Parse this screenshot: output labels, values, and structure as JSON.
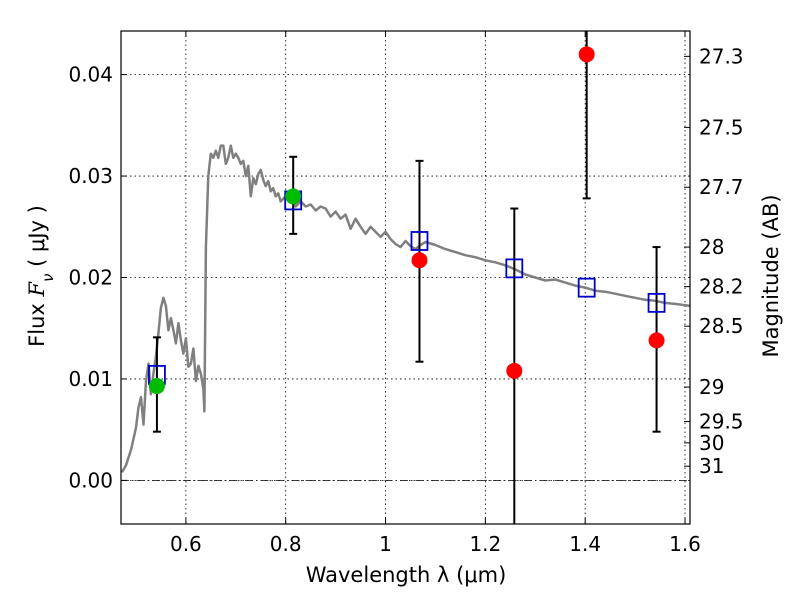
{
  "chart_data": {
    "type": "scatter",
    "title": "",
    "xlabel": "Wavelength  λ (μm)",
    "ylabel_parts": {
      "prefix": "Flux  ",
      "symbol": "F",
      "subscript": "ν",
      "suffix": "  ( μJy )"
    },
    "ylabel_right": "Magnitude (AB)",
    "xlim": [
      0.47,
      1.61
    ],
    "ylim": [
      -0.0043,
      0.0443
    ],
    "x_ticks": [
      {
        "value": 0.6,
        "label": "0.6"
      },
      {
        "value": 0.8,
        "label": "0.8"
      },
      {
        "value": 1.0,
        "label": "1"
      },
      {
        "value": 1.2,
        "label": "1.2"
      },
      {
        "value": 1.4,
        "label": "1.4"
      },
      {
        "value": 1.6,
        "label": "1.6"
      }
    ],
    "y_ticks": [
      {
        "value": 0.0,
        "label": "0.00"
      },
      {
        "value": 0.01,
        "label": "0.01"
      },
      {
        "value": 0.02,
        "label": "0.02"
      },
      {
        "value": 0.03,
        "label": "0.03"
      },
      {
        "value": 0.04,
        "label": "0.04"
      }
    ],
    "magnitude_ticks": [
      {
        "flux": 0.0418,
        "label": "27.3"
      },
      {
        "flux": 0.0348,
        "label": "27.5"
      },
      {
        "flux": 0.0289,
        "label": "27.7"
      },
      {
        "flux": 0.023,
        "label": "28"
      },
      {
        "flux": 0.0191,
        "label": "28.2"
      },
      {
        "flux": 0.0152,
        "label": "28.5"
      },
      {
        "flux": 0.0092,
        "label": "29"
      },
      {
        "flux": 0.0058,
        "label": "29.5"
      },
      {
        "flux": 0.0037,
        "label": "30"
      },
      {
        "flux": 0.0014,
        "label": "31"
      }
    ],
    "grid": true,
    "zero_line": 0.0,
    "colors": {
      "sed": "#808080",
      "model": "#0000cc",
      "observed": "#ff0000",
      "alt": "#00bb00",
      "errorbar": "#000000",
      "grid": "#000000"
    },
    "series": [
      {
        "name": "SED template",
        "kind": "line",
        "x": [
          0.472,
          0.48,
          0.49,
          0.5,
          0.505,
          0.51,
          0.515,
          0.52,
          0.525,
          0.53,
          0.535,
          0.54,
          0.545,
          0.55,
          0.555,
          0.56,
          0.565,
          0.57,
          0.575,
          0.58,
          0.585,
          0.59,
          0.595,
          0.6,
          0.605,
          0.61,
          0.615,
          0.62,
          0.625,
          0.63,
          0.635,
          0.637,
          0.64,
          0.645,
          0.65,
          0.655,
          0.66,
          0.665,
          0.67,
          0.675,
          0.68,
          0.685,
          0.69,
          0.695,
          0.7,
          0.705,
          0.71,
          0.715,
          0.72,
          0.725,
          0.73,
          0.735,
          0.74,
          0.745,
          0.75,
          0.755,
          0.76,
          0.765,
          0.77,
          0.775,
          0.78,
          0.785,
          0.79,
          0.8,
          0.81,
          0.815,
          0.82,
          0.83,
          0.84,
          0.85,
          0.86,
          0.87,
          0.88,
          0.89,
          0.9,
          0.91,
          0.92,
          0.93,
          0.94,
          0.95,
          0.96,
          0.97,
          0.98,
          0.99,
          1.0,
          1.01,
          1.02,
          1.03,
          1.04,
          1.05,
          1.06,
          1.07,
          1.08,
          1.1,
          1.12,
          1.14,
          1.16,
          1.18,
          1.2,
          1.22,
          1.24,
          1.26,
          1.28,
          1.3,
          1.32,
          1.34,
          1.36,
          1.38,
          1.4,
          1.42,
          1.44,
          1.46,
          1.48,
          1.5,
          1.52,
          1.54,
          1.56,
          1.58,
          1.61
        ],
        "y": [
          0.0008,
          0.0015,
          0.003,
          0.0052,
          0.0072,
          0.0082,
          0.0055,
          0.0098,
          0.0115,
          0.0085,
          0.0105,
          0.0122,
          0.0145,
          0.017,
          0.018,
          0.0172,
          0.0148,
          0.016,
          0.0148,
          0.0135,
          0.0155,
          0.0138,
          0.0125,
          0.014,
          0.0112,
          0.0115,
          0.013,
          0.0098,
          0.0113,
          0.0105,
          0.009,
          0.0068,
          0.023,
          0.03,
          0.0322,
          0.0318,
          0.0325,
          0.0318,
          0.033,
          0.033,
          0.0312,
          0.0318,
          0.033,
          0.0318,
          0.0322,
          0.0318,
          0.0312,
          0.0315,
          0.03,
          0.031,
          0.028,
          0.0298,
          0.0292,
          0.0302,
          0.0306,
          0.0296,
          0.029,
          0.0295,
          0.0285,
          0.0288,
          0.028,
          0.0283,
          0.0275,
          0.028,
          0.0285,
          0.0283,
          0.027,
          0.0275,
          0.027,
          0.0272,
          0.0266,
          0.027,
          0.0268,
          0.026,
          0.0265,
          0.0258,
          0.0262,
          0.0248,
          0.0258,
          0.025,
          0.0243,
          0.025,
          0.0245,
          0.024,
          0.0245,
          0.0238,
          0.0233,
          0.023,
          0.0236,
          0.0231,
          0.0228,
          0.0232,
          0.0235,
          0.0232,
          0.0228,
          0.0225,
          0.0222,
          0.022,
          0.0217,
          0.0215,
          0.0212,
          0.0208,
          0.0203,
          0.02,
          0.0197,
          0.0198,
          0.0195,
          0.0192,
          0.019,
          0.0187,
          0.0186,
          0.0184,
          0.0182,
          0.018,
          0.0178,
          0.0177,
          0.0175,
          0.0174,
          0.0172
        ]
      },
      {
        "name": "Model photometry",
        "kind": "square",
        "x": [
          0.542,
          0.815,
          1.068,
          1.258,
          1.403,
          1.543
        ],
        "y": [
          0.0104,
          0.0276,
          0.0236,
          0.0209,
          0.019,
          0.0175
        ]
      },
      {
        "name": "Observed photometry",
        "kind": "circle",
        "x": [
          1.068,
          1.258,
          1.403,
          1.543
        ],
        "y": [
          0.0217,
          0.0108,
          0.042,
          0.0138
        ],
        "yerr_low": [
          0.0117,
          -0.005,
          0.0278,
          0.0048
        ],
        "yerr_high": [
          0.0315,
          0.0268,
          0.0443,
          0.023
        ]
      },
      {
        "name": "Alternate photometry",
        "kind": "circle",
        "x": [
          0.542,
          0.815
        ],
        "y": [
          0.0093,
          0.028
        ],
        "yerr_low": [
          0.0048,
          0.0243
        ],
        "yerr_high": [
          0.0141,
          0.0319
        ]
      }
    ]
  }
}
